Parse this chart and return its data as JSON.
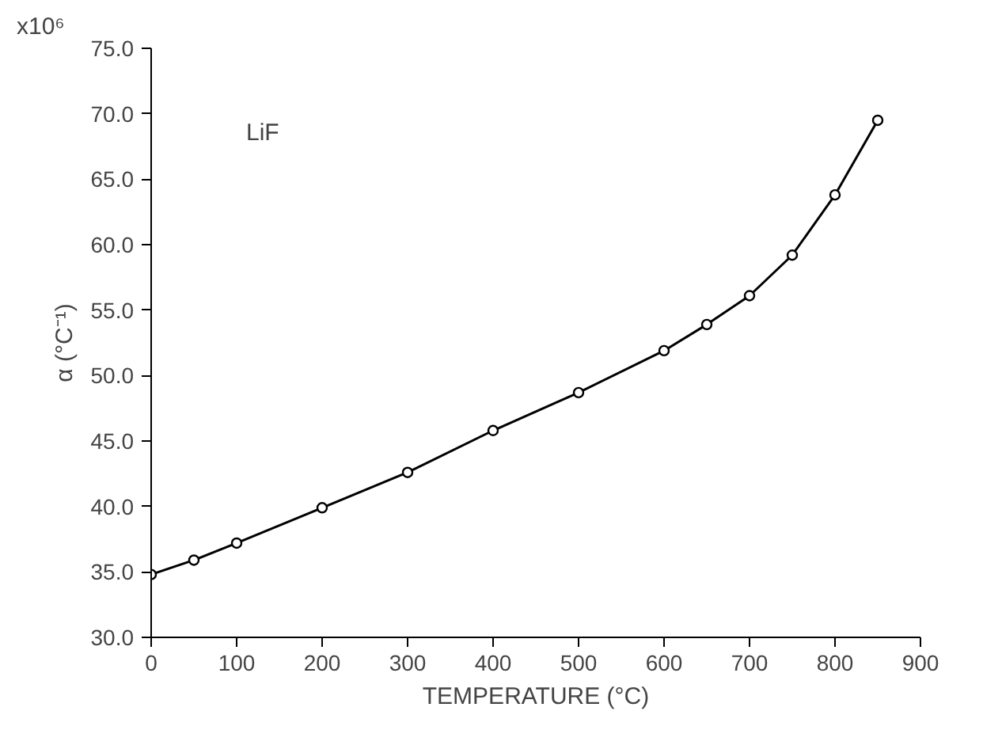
{
  "chart_data": {
    "type": "line",
    "xlabel": "TEMPERATURE (°C)",
    "ylabel": "α (°C⁻¹)",
    "annotations": [
      "x10⁶",
      "LiF"
    ],
    "x": [
      0,
      50,
      100,
      200,
      300,
      400,
      500,
      600,
      650,
      700,
      750,
      800,
      850
    ],
    "series": [
      {
        "color": "#000000",
        "values": [
          34.8,
          35.9,
          37.2,
          39.9,
          42.6,
          45.8,
          48.7,
          51.9,
          53.9,
          56.1,
          59.2,
          63.8,
          69.5
        ]
      }
    ],
    "xlim": [
      0,
      900
    ],
    "xticks": [
      0,
      100,
      200,
      300,
      400,
      500,
      600,
      700,
      800,
      900
    ],
    "ylim": [
      30,
      75
    ],
    "yticks": [
      {
        "value": 30,
        "label": "30.0"
      },
      {
        "value": 35,
        "label": "35.0"
      },
      {
        "value": 40,
        "label": "40.0"
      },
      {
        "value": 45,
        "label": "45.0"
      },
      {
        "value": 50,
        "label": "50.0"
      },
      {
        "value": 55,
        "label": "55.0"
      },
      {
        "value": 60,
        "label": "60.0"
      },
      {
        "value": 65,
        "label": "65.0"
      },
      {
        "value": 70,
        "label": "70.0"
      },
      {
        "value": 75,
        "label": "75.0"
      }
    ],
    "grid": false,
    "marker": "circle",
    "line_style": "solid"
  }
}
